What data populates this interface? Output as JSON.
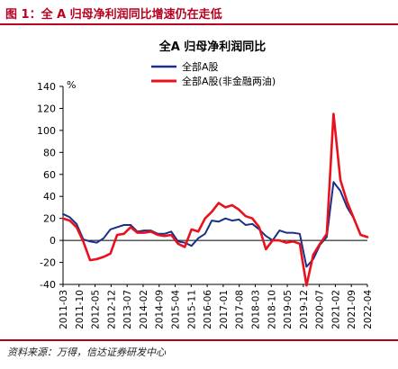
{
  "figure": {
    "title": "图 1：全 A 归母净利润同比增速仍在走低",
    "source": "资料来源：万得，信达证券研发中心"
  },
  "chart_data": {
    "type": "line",
    "title": "全A 归母净利润同比",
    "ylabel": "%",
    "ylim": [
      -40,
      140
    ],
    "yticks": [
      -40,
      -20,
      0,
      20,
      40,
      60,
      80,
      100,
      120,
      140
    ],
    "x": [
      "2011-03",
      "2011-06",
      "2011-09",
      "2011-12",
      "2012-03",
      "2012-06",
      "2012-09",
      "2012-12",
      "2013-03",
      "2013-06",
      "2013-09",
      "2013-12",
      "2014-03",
      "2014-06",
      "2014-09",
      "2014-12",
      "2015-03",
      "2015-06",
      "2015-09",
      "2015-12",
      "2016-03",
      "2016-06",
      "2016-09",
      "2016-12",
      "2017-03",
      "2017-06",
      "2017-09",
      "2017-12",
      "2018-03",
      "2018-06",
      "2018-09",
      "2018-12",
      "2019-03",
      "2019-06",
      "2019-09",
      "2019-12",
      "2020-03",
      "2020-06",
      "2020-09",
      "2020-12",
      "2021-03",
      "2021-06",
      "2021-09",
      "2021-12",
      "2022-03",
      "2022-06"
    ],
    "xtick_labels": [
      "2011-03",
      "2011-10",
      "2012-05",
      "2012-12",
      "2013-07",
      "2014-02",
      "2014-09",
      "2015-04",
      "2015-11",
      "2016-06",
      "2017-01",
      "2017-08",
      "2018-03",
      "2018-10",
      "2019-05",
      "2019-12",
      "2020-07",
      "2021-02",
      "2021-09",
      "2022-04"
    ],
    "series": [
      {
        "name": "全部A股",
        "color": "#1a2f8a",
        "values": [
          24,
          21,
          15,
          1,
          -1,
          -2,
          2,
          10,
          12,
          14,
          14,
          8,
          9,
          9,
          6,
          6,
          8,
          -1,
          -2,
          -5,
          2,
          6,
          18,
          17,
          20,
          18,
          19,
          14,
          15,
          10,
          4,
          0,
          9,
          7,
          7,
          6,
          -24,
          -17,
          -4,
          3,
          53,
          45,
          30,
          20,
          5,
          3
        ]
      },
      {
        "name": "全部A股(非金融两油)",
        "color": "#e8111d",
        "values": [
          20,
          18,
          12,
          -1,
          -18,
          -17,
          -15,
          -12,
          5,
          6,
          12,
          7,
          7,
          8,
          5,
          4,
          5,
          -3,
          -6,
          10,
          8,
          20,
          26,
          34,
          30,
          32,
          28,
          22,
          20,
          12,
          -8,
          0,
          0,
          -2,
          -1,
          -3,
          -41,
          -13,
          -3,
          6,
          115,
          55,
          35,
          20,
          5,
          3
        ]
      }
    ]
  }
}
